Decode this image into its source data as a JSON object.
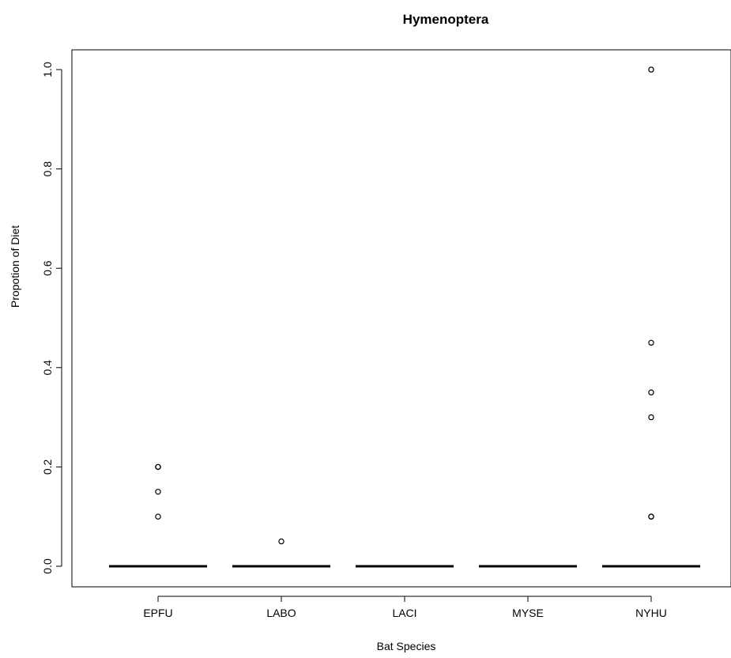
{
  "chart_data": {
    "type": "boxplot",
    "title": "Hymenoptera",
    "xlabel": "Bat Species",
    "ylabel": "Propotion of Diet",
    "categories": [
      "EPFU",
      "LABO",
      "LACI",
      "MYSE",
      "NYHU"
    ],
    "medians": [
      0,
      0,
      0,
      0,
      0
    ],
    "outliers": [
      [
        0.2,
        0.2,
        0.15,
        0.1
      ],
      [
        0.05
      ],
      [],
      [],
      [
        1.0,
        0.45,
        0.35,
        0.3,
        0.1,
        0.1
      ]
    ],
    "ylim": [
      0,
      1
    ],
    "yticks": [
      "0.0",
      "0.2",
      "0.4",
      "0.6",
      "0.8",
      "1.0"
    ],
    "grid": false,
    "legend": "none",
    "colors": {
      "line": "#000000",
      "background": "#ffffff"
    }
  }
}
